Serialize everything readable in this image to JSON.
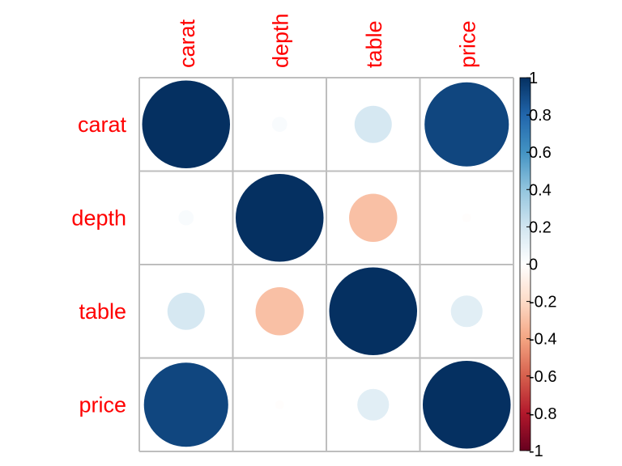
{
  "chart_data": {
    "type": "heatmap",
    "variables": [
      "carat",
      "depth",
      "table",
      "price"
    ],
    "matrix": [
      [
        1.0,
        0.03,
        0.18,
        0.92
      ],
      [
        0.03,
        1.0,
        -0.3,
        -0.01
      ],
      [
        0.18,
        -0.3,
        1.0,
        0.13
      ],
      [
        0.92,
        -0.01,
        0.13,
        1.0
      ]
    ],
    "colorbar": {
      "range": [
        -1,
        1
      ],
      "tick_labels": [
        "1",
        "0.8",
        "0.6",
        "0.4",
        "0.2",
        "0",
        "-0.2",
        "-0.4",
        "-0.6",
        "-0.8",
        "-1"
      ],
      "tick_values": [
        1,
        0.8,
        0.6,
        0.4,
        0.2,
        0,
        -0.2,
        -0.4,
        -0.6,
        -0.8,
        -1
      ],
      "colors": [
        "#67001F",
        "#B2182B",
        "#D6604D",
        "#F4A582",
        "#FDDBC7",
        "#FFFFFF",
        "#D1E5F0",
        "#92C5DE",
        "#4393C3",
        "#2166AC",
        "#053061"
      ]
    },
    "label_color": "#ff0000",
    "grid_color": "#bebebe",
    "glyph": "circle"
  }
}
